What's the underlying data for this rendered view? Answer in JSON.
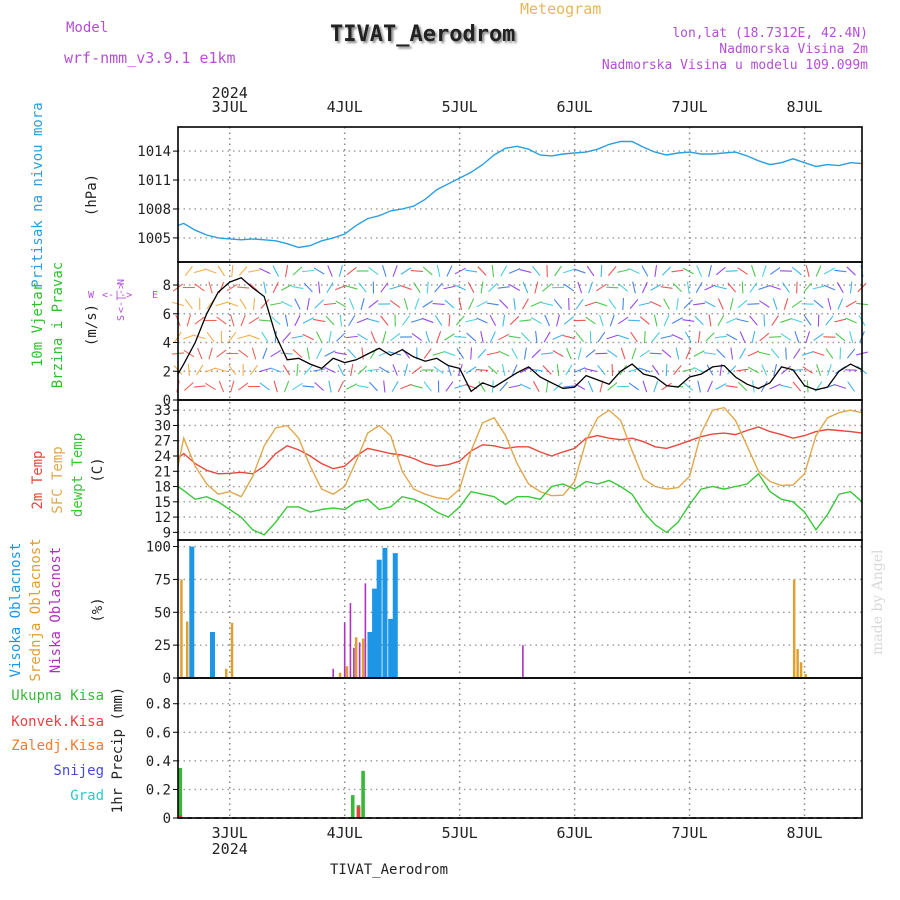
{
  "header": {
    "model_label": "Model",
    "model_name": "wrf-nmm_v3.9.1 e1km",
    "meteogram": "Meteogram",
    "title": "TIVAT_Aerodrom",
    "lonlat": "lon,lat (18.7312E, 42.4N)",
    "elev": "Nadmorska Visina 2m",
    "elev_model": "Nadmorska Visina u modelu 109.099m"
  },
  "footer": {
    "station": "TIVAT_Aerodrom",
    "credit": "made by Angel"
  },
  "time_axis": {
    "year": "2024",
    "days": [
      "3JUL",
      "4JUL",
      "5JUL",
      "6JUL",
      "7JUL",
      "8JUL"
    ]
  },
  "colors": {
    "pressure": "#2aa0e0",
    "wind_speed": "#000000",
    "t2m": "#e8483c",
    "tsfc": "#e0a84c",
    "tdew": "#38c838",
    "high_cloud": "#1e96e6",
    "mid_cloud": "#e0a030",
    "low_cloud": "#b030c0",
    "total_precip": "#38b838",
    "conv_precip": "#e84040",
    "frozen": "#f07a30",
    "snow": "#4848e0",
    "graupel": "#30c8c8",
    "label_purple": "#b44fd6"
  },
  "chart_data": [
    {
      "type": "line",
      "panel": "pressure",
      "ylabel": "Pritisak na nivou mora",
      "unit": "(hPa)",
      "yticks": [
        "1005",
        "1008",
        "1011",
        "1014"
      ],
      "ylim": [
        1002.5,
        1016.5
      ],
      "xlim": [
        2.55,
        8.5
      ],
      "x": [
        2.55,
        2.6,
        2.7,
        2.8,
        2.9,
        3.0,
        3.1,
        3.2,
        3.3,
        3.4,
        3.5,
        3.6,
        3.7,
        3.8,
        3.9,
        4.0,
        4.1,
        4.2,
        4.3,
        4.4,
        4.5,
        4.6,
        4.7,
        4.8,
        4.9,
        5.0,
        5.1,
        5.2,
        5.3,
        5.4,
        5.5,
        5.6,
        5.7,
        5.8,
        5.9,
        6.0,
        6.1,
        6.2,
        6.3,
        6.4,
        6.5,
        6.6,
        6.7,
        6.8,
        6.9,
        7.0,
        7.1,
        7.2,
        7.3,
        7.4,
        7.5,
        7.6,
        7.7,
        7.8,
        7.9,
        8.0,
        8.1,
        8.2,
        8.3,
        8.4,
        8.5
      ],
      "values": [
        1006.3,
        1006.5,
        1005.8,
        1005.3,
        1005.0,
        1004.9,
        1004.8,
        1004.9,
        1004.8,
        1004.7,
        1004.4,
        1004.0,
        1004.2,
        1004.7,
        1005.0,
        1005.4,
        1006.3,
        1007.0,
        1007.3,
        1007.8,
        1008.0,
        1008.3,
        1009.0,
        1010.0,
        1010.6,
        1011.2,
        1011.8,
        1012.6,
        1013.6,
        1014.3,
        1014.5,
        1014.2,
        1013.6,
        1013.5,
        1013.7,
        1013.8,
        1013.9,
        1014.2,
        1014.7,
        1015.0,
        1015.0,
        1014.4,
        1013.9,
        1013.6,
        1013.8,
        1013.9,
        1013.7,
        1013.7,
        1013.8,
        1013.9,
        1013.5,
        1013.0,
        1012.6,
        1012.8,
        1013.2,
        1012.8,
        1012.4,
        1012.6,
        1012.5,
        1012.8,
        1012.7
      ]
    },
    {
      "type": "line",
      "panel": "wind",
      "ylabel1": "10m Vjetar",
      "ylabel2": "Brzina i Pravac",
      "unit": "(m/s)",
      "compass": {
        "n": "N",
        "e": "E",
        "s": "S",
        "w": "W",
        "arrows": "<-|->"
      },
      "yticks": [
        "0",
        "2",
        "4",
        "6",
        "8"
      ],
      "ylim": [
        0,
        9.6
      ],
      "xlim": [
        2.55,
        8.5
      ],
      "x": [
        2.55,
        2.6,
        2.7,
        2.8,
        2.9,
        3.0,
        3.1,
        3.2,
        3.3,
        3.4,
        3.5,
        3.6,
        3.7,
        3.8,
        3.9,
        4.0,
        4.1,
        4.2,
        4.3,
        4.4,
        4.5,
        4.6,
        4.7,
        4.8,
        4.9,
        5.0,
        5.1,
        5.2,
        5.3,
        5.4,
        5.5,
        5.6,
        5.7,
        5.8,
        5.9,
        6.0,
        6.1,
        6.2,
        6.3,
        6.4,
        6.5,
        6.6,
        6.7,
        6.8,
        6.9,
        7.0,
        7.1,
        7.2,
        7.3,
        7.4,
        7.5,
        7.6,
        7.7,
        7.8,
        7.9,
        8.0,
        8.1,
        8.2,
        8.3,
        8.4,
        8.5
      ],
      "values": [
        1.8,
        2.5,
        4.0,
        6.0,
        7.5,
        8.2,
        8.5,
        7.8,
        7.2,
        4.5,
        2.8,
        2.9,
        2.5,
        2.2,
        2.9,
        2.6,
        2.8,
        3.2,
        3.6,
        3.1,
        3.5,
        3.0,
        2.7,
        2.9,
        2.4,
        2.2,
        0.6,
        1.2,
        0.9,
        1.4,
        1.9,
        2.3,
        1.6,
        1.2,
        0.8,
        0.9,
        1.7,
        1.4,
        1.1,
        2.0,
        2.5,
        1.8,
        1.6,
        1.0,
        0.9,
        1.6,
        1.8,
        2.3,
        2.4,
        1.6,
        1.1,
        0.8,
        1.2,
        2.3,
        2.1,
        1.0,
        0.7,
        0.9,
        2.0,
        2.5,
        2.1
      ]
    },
    {
      "type": "line",
      "panel": "temperature",
      "ylabel1": "2m Temp",
      "ylabel2": "SFC Temp",
      "ylabel3": "dewpt Temp",
      "unit": "(C)",
      "yticks": [
        "9",
        "12",
        "15",
        "18",
        "21",
        "24",
        "27",
        "30",
        "33"
      ],
      "ylim": [
        7.5,
        35
      ],
      "xlim": [
        2.55,
        8.5
      ],
      "x": [
        2.55,
        2.6,
        2.7,
        2.8,
        2.9,
        3.0,
        3.1,
        3.2,
        3.3,
        3.4,
        3.5,
        3.6,
        3.7,
        3.8,
        3.9,
        4.0,
        4.1,
        4.2,
        4.3,
        4.4,
        4.5,
        4.6,
        4.7,
        4.8,
        4.9,
        5.0,
        5.1,
        5.2,
        5.3,
        5.4,
        5.5,
        5.6,
        5.7,
        5.8,
        5.9,
        6.0,
        6.1,
        6.2,
        6.3,
        6.4,
        6.5,
        6.6,
        6.7,
        6.8,
        6.9,
        7.0,
        7.1,
        7.2,
        7.3,
        7.4,
        7.5,
        7.6,
        7.7,
        7.8,
        7.9,
        8.0,
        8.1,
        8.2,
        8.3,
        8.4,
        8.5
      ],
      "series": [
        {
          "name": "2m Temp",
          "key": "t2m",
          "values": [
            23.5,
            24.5,
            22.5,
            21.2,
            20.5,
            20.6,
            20.8,
            20.5,
            22.0,
            24.5,
            26.0,
            25.2,
            24.0,
            22.5,
            21.5,
            22.0,
            24.0,
            25.5,
            25.0,
            24.5,
            24.2,
            23.5,
            22.5,
            22.0,
            22.3,
            23.0,
            25.0,
            26.2,
            26.0,
            25.5,
            25.8,
            25.8,
            24.8,
            24.0,
            24.8,
            25.5,
            27.5,
            28.0,
            27.5,
            27.2,
            27.5,
            26.8,
            25.8,
            25.5,
            26.2,
            27.0,
            27.8,
            28.3,
            28.5,
            28.2,
            29.0,
            29.7,
            28.8,
            28.2,
            27.5,
            28.0,
            28.8,
            29.2,
            29.0,
            28.8,
            28.5
          ]
        },
        {
          "name": "SFC Temp",
          "key": "tsfc",
          "values": [
            22.0,
            27.5,
            22.0,
            18.5,
            16.5,
            17.0,
            16.0,
            20.0,
            26.0,
            29.5,
            30.0,
            27.5,
            22.0,
            17.5,
            16.5,
            18.0,
            23.0,
            28.5,
            30.0,
            28.0,
            21.0,
            17.5,
            16.5,
            15.8,
            15.5,
            17.5,
            25.0,
            30.5,
            31.5,
            28.0,
            22.5,
            18.5,
            17.0,
            16.2,
            16.3,
            19.0,
            27.0,
            31.5,
            33.0,
            31.0,
            25.0,
            19.5,
            18.0,
            17.5,
            17.8,
            20.0,
            28.5,
            33.0,
            33.5,
            31.0,
            26.0,
            21.0,
            19.0,
            18.2,
            18.3,
            20.5,
            28.0,
            31.5,
            32.5,
            33.0,
            32.5
          ]
        },
        {
          "name": "dewpt Temp",
          "key": "tdew",
          "values": [
            18.0,
            17.2,
            15.5,
            16.0,
            15.0,
            13.5,
            12.0,
            9.5,
            8.5,
            11.0,
            14.0,
            14.0,
            13.0,
            13.5,
            13.8,
            13.5,
            15.0,
            15.5,
            13.5,
            14.0,
            16.0,
            15.5,
            14.5,
            13.0,
            12.0,
            14.0,
            17.0,
            16.5,
            16.0,
            14.5,
            16.0,
            16.0,
            15.5,
            18.0,
            18.5,
            17.5,
            19.0,
            18.5,
            19.2,
            18.0,
            16.5,
            13.0,
            10.5,
            9.0,
            11.0,
            14.5,
            17.5,
            18.0,
            17.5,
            18.0,
            18.5,
            20.5,
            17.0,
            15.5,
            15.0,
            13.0,
            9.5,
            12.5,
            16.5,
            17.0,
            15.0
          ]
        }
      ]
    },
    {
      "type": "bar",
      "panel": "clouds",
      "ylabel1": "Visoka Oblacnost",
      "ylabel2": "Srednja Oblacnost",
      "ylabel3": "Niska Oblacnost",
      "unit": "(%)",
      "yticks": [
        "0",
        "25",
        "50",
        "75",
        "100"
      ],
      "ylim": [
        0,
        105
      ],
      "xlim": [
        2.55,
        8.5
      ],
      "series": [
        {
          "name": "Visoka Oblacnost",
          "key": "high_cloud",
          "x": [
            2.67,
            2.85,
            4.22,
            4.26,
            4.3,
            4.35,
            4.4,
            4.44
          ],
          "values": [
            100,
            35,
            35,
            68,
            90,
            99,
            45,
            95
          ]
        },
        {
          "name": "Srednja Oblacnost",
          "key": "mid_cloud",
          "x": [
            2.58,
            2.63,
            2.97,
            3.02,
            3.96,
            4.02,
            4.1,
            4.16,
            7.91,
            7.94,
            7.97,
            8.01
          ],
          "values": [
            75,
            43,
            7,
            42,
            4,
            9,
            31,
            30,
            75,
            22,
            12,
            3
          ]
        },
        {
          "name": "Niska Oblacnost",
          "key": "low_cloud",
          "x": [
            3.9,
            4.0,
            4.05,
            4.08,
            4.13,
            4.18,
            5.55
          ],
          "values": [
            7,
            42,
            57,
            23,
            27,
            72,
            25
          ]
        }
      ]
    },
    {
      "type": "bar",
      "panel": "precip",
      "legend": [
        "Ukupna Kisa",
        "Konvek.Kisa",
        "Zaledj.Kisa",
        "Snijeg",
        "Grad"
      ],
      "ylabel": "1hr Precip (mm)",
      "yticks": [
        "0",
        "0.2",
        "0.4",
        "0.6",
        "0.8"
      ],
      "ylim": [
        0,
        0.98
      ],
      "xlim": [
        2.55,
        8.5
      ],
      "series": [
        {
          "name": "Ukupna Kisa",
          "key": "total_precip",
          "x": [
            2.57,
            4.07,
            4.12,
            4.16
          ],
          "values": [
            0.35,
            0.16,
            0.09,
            0.33
          ]
        },
        {
          "name": "Konvek.Kisa",
          "key": "conv_precip",
          "x": [
            2.57,
            4.12
          ],
          "values": [
            0.02,
            0.08
          ]
        }
      ]
    }
  ]
}
